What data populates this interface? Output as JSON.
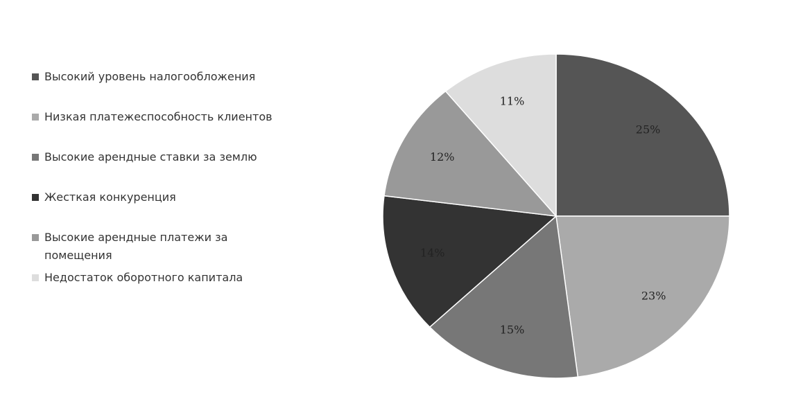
{
  "chart_data": {
    "type": "pie",
    "categories": [
      "Высокий уровень налогообложения",
      "Низкая платежеспособность клиентов",
      "Высокие арендные ставки за землю",
      "Жесткая конкуренция",
      "Высокие арендные платежи за помещения",
      "Недостаток оборотного капитала"
    ],
    "values": [
      25,
      23,
      15,
      14,
      12,
      11
    ],
    "value_labels": [
      "25%",
      "23%",
      "15%",
      "14%",
      "12%",
      "11%"
    ],
    "colors": [
      "#555555",
      "#aaaaaa",
      "#777777",
      "#333333",
      "#999999",
      "#dddddd"
    ],
    "legend": "left"
  }
}
